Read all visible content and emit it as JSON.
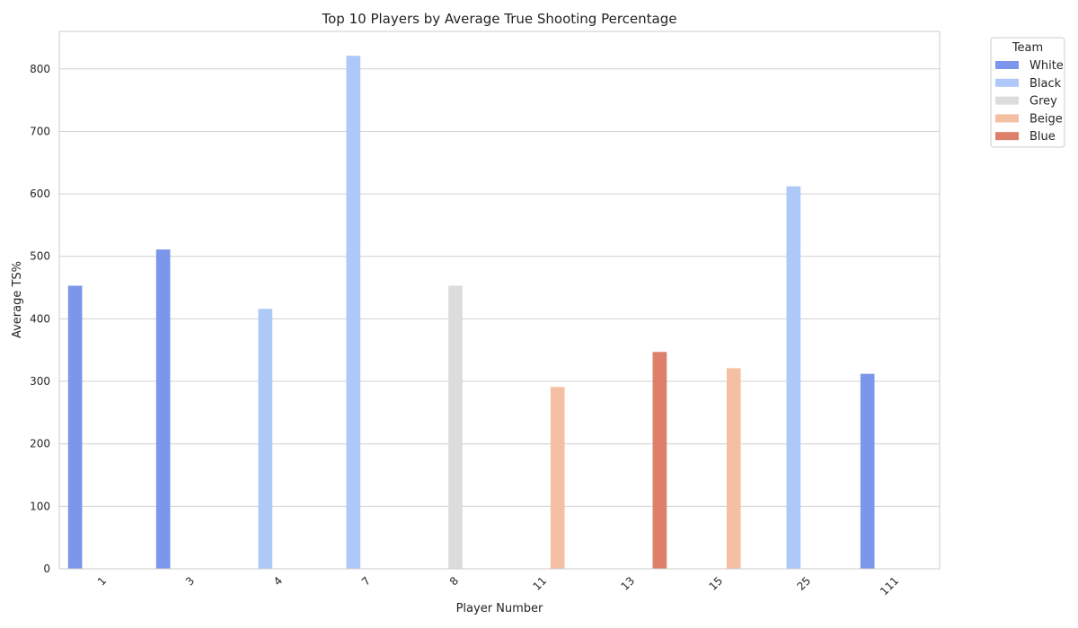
{
  "chart_data": {
    "type": "bar",
    "title": "Top 10 Players by Average True Shooting Percentage",
    "xlabel": "Player Number",
    "ylabel": "Average TS%",
    "ylim": [
      0,
      860
    ],
    "yticks": [
      0,
      100,
      200,
      300,
      400,
      500,
      600,
      700,
      800
    ],
    "grid": true,
    "legend": {
      "title": "Team",
      "placement": "outside-top-right"
    },
    "categories": [
      "1",
      "3",
      "4",
      "7",
      "8",
      "11",
      "13",
      "15",
      "25",
      "111"
    ],
    "series": [
      {
        "name": "White",
        "color": "#7b96ea",
        "values": [
          453,
          511,
          null,
          null,
          null,
          null,
          null,
          null,
          null,
          312
        ]
      },
      {
        "name": "Black",
        "color": "#aec8f8",
        "values": [
          null,
          null,
          416,
          821,
          null,
          null,
          null,
          null,
          612,
          null
        ]
      },
      {
        "name": "Grey",
        "color": "#dddcdc",
        "values": [
          null,
          null,
          null,
          null,
          453,
          null,
          null,
          null,
          null,
          null
        ]
      },
      {
        "name": "Beige",
        "color": "#f4bfa3",
        "values": [
          null,
          null,
          null,
          null,
          null,
          291,
          null,
          321,
          null,
          null
        ]
      },
      {
        "name": "Blue",
        "color": "#dd7f6a",
        "values": [
          null,
          null,
          null,
          null,
          null,
          null,
          347,
          null,
          null,
          null
        ]
      }
    ]
  }
}
